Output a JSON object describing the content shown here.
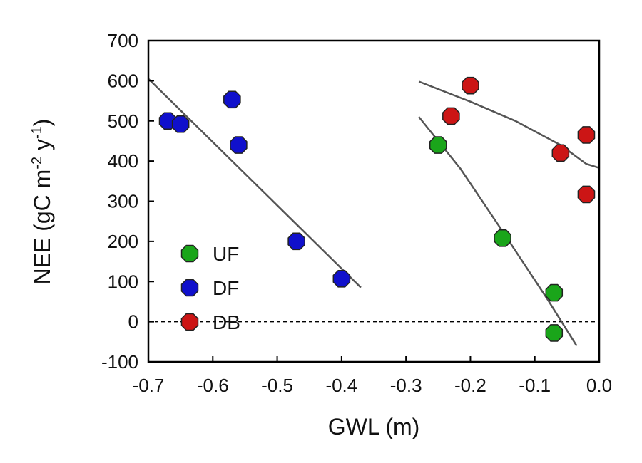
{
  "chart_data": {
    "type": "scatter",
    "title": "",
    "xlabel": "GWL (m)",
    "ylabel_parts": {
      "base": "NEE (gC m",
      "sup1": "-2",
      "mid": " y",
      "sup2": "-1",
      "end": ")"
    },
    "xlim": [
      -0.7,
      0.0
    ],
    "ylim": [
      -100,
      700
    ],
    "xticks": [
      -0.7,
      -0.6,
      -0.5,
      -0.4,
      -0.3,
      -0.2,
      -0.1,
      0.0
    ],
    "xtick_labels": [
      "-0.7",
      "-0.6",
      "-0.5",
      "-0.4",
      "-0.3",
      "-0.2",
      "-0.1",
      "0.0"
    ],
    "yticks": [
      -100,
      0,
      100,
      200,
      300,
      400,
      500,
      600,
      700
    ],
    "ytick_labels": [
      "-100",
      "0",
      "100",
      "200",
      "300",
      "400",
      "500",
      "600",
      "700"
    ],
    "zero_line": 0,
    "legend_position": "lower-left",
    "series": [
      {
        "name": "UF",
        "color": "#1aa51a",
        "points": [
          [
            -0.25,
            440
          ],
          [
            -0.15,
            208
          ],
          [
            -0.07,
            72
          ],
          [
            -0.07,
            -28
          ]
        ],
        "fit": [
          [
            -0.28,
            510
          ],
          [
            -0.215,
            380
          ],
          [
            -0.15,
            225
          ],
          [
            -0.08,
            55
          ],
          [
            -0.035,
            -60
          ]
        ]
      },
      {
        "name": "DF",
        "color": "#1010cc",
        "points": [
          [
            -0.67,
            500
          ],
          [
            -0.65,
            492
          ],
          [
            -0.57,
            553
          ],
          [
            -0.56,
            440
          ],
          [
            -0.47,
            200
          ],
          [
            -0.4,
            107
          ]
        ],
        "fit": [
          [
            -0.7,
            605
          ],
          [
            -0.37,
            85
          ]
        ]
      },
      {
        "name": "DB",
        "color": "#cc1515",
        "points": [
          [
            -0.2,
            588
          ],
          [
            -0.23,
            512
          ],
          [
            -0.06,
            420
          ],
          [
            -0.02,
            465
          ],
          [
            -0.02,
            317
          ]
        ],
        "fit": [
          [
            -0.28,
            598
          ],
          [
            -0.2,
            548
          ],
          [
            -0.13,
            500
          ],
          [
            -0.06,
            440
          ],
          [
            -0.02,
            393
          ],
          [
            0.0,
            383
          ]
        ]
      }
    ]
  }
}
